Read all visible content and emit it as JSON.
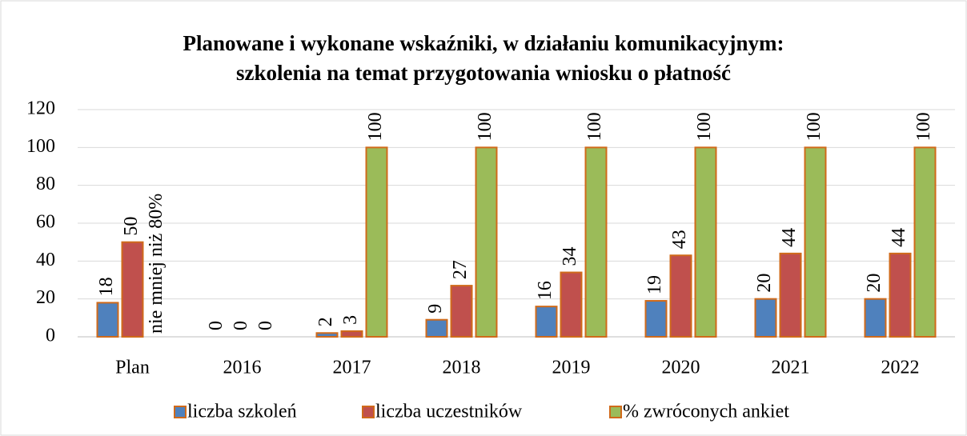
{
  "chart_data": {
    "type": "bar",
    "title": "Planowane i wykonane wskaźniki, w działaniu komunikacyjnym:",
    "subtitle": "szkolenia na temat przygotowania wniosku o płatność",
    "categories": [
      "Plan",
      "2016",
      "2017",
      "2018",
      "2019",
      "2020",
      "2021",
      "2022"
    ],
    "series": [
      {
        "name": "liczba szkoleń",
        "color": "#4f81bd",
        "values": [
          18,
          0,
          2,
          9,
          16,
          19,
          20,
          20
        ]
      },
      {
        "name": "liczba uczestników",
        "color": "#c0504d",
        "values": [
          50,
          0,
          3,
          27,
          34,
          43,
          44,
          44
        ]
      },
      {
        "name": "% zwróconych ankiet",
        "color": "#9bbb59",
        "values": [
          null,
          0,
          100,
          100,
          100,
          100,
          100,
          100
        ],
        "value_labels": [
          "nie mniej niż 80%",
          "0",
          "100",
          "100",
          "100",
          "100",
          "100",
          "100"
        ]
      }
    ],
    "bar_edge_color": "#d06a1a",
    "ylim": [
      0,
      120
    ],
    "yticks": [
      0,
      20,
      40,
      60,
      80,
      100,
      120
    ],
    "grid": true,
    "legend": "bottom"
  }
}
